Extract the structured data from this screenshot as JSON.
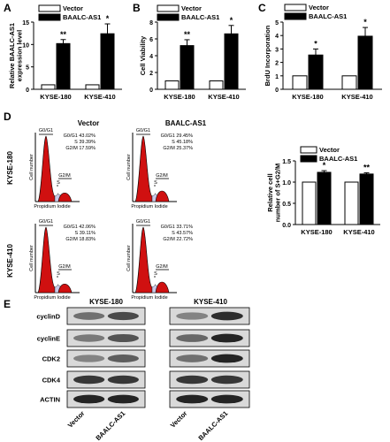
{
  "panels": {
    "A": "A",
    "B": "B",
    "C": "C",
    "D": "D",
    "E": "E"
  },
  "legend": {
    "vector": "Vector",
    "baalc": "BAALC-AS1"
  },
  "colors": {
    "vector": "#ffffff",
    "baalc": "#000000",
    "peak": "#d01010",
    "s_fill": "#c8c8e8",
    "blot_bg": "#d9d9d9",
    "band": "#1a1a1a"
  },
  "chart_data": [
    {
      "id": "A",
      "type": "bar",
      "categories": [
        "KYSE-180",
        "KYSE-410"
      ],
      "series": [
        {
          "name": "Vector",
          "values": [
            1,
            1
          ]
        },
        {
          "name": "BAALC-AS1",
          "values": [
            10.2,
            12.4
          ],
          "errors": [
            0.9,
            2.2
          ]
        }
      ],
      "ylabel": "Relative BAALC-AS1 expression level",
      "ylim": [
        0,
        15
      ],
      "yticks": [
        "0",
        "5",
        "10",
        "15"
      ],
      "sig": [
        "**",
        "*"
      ]
    },
    {
      "id": "B",
      "type": "bar",
      "categories": [
        "KYSE-180",
        "KYSE-410"
      ],
      "series": [
        {
          "name": "Vector",
          "values": [
            1,
            1
          ]
        },
        {
          "name": "BAALC-AS1",
          "values": [
            5.2,
            6.6
          ],
          "errors": [
            0.7,
            1.0
          ]
        }
      ],
      "ylabel": "Cell Viability",
      "ylim": [
        0,
        8
      ],
      "yticks": [
        "0",
        "2",
        "4",
        "6",
        "8"
      ],
      "sig": [
        "**",
        "*"
      ]
    },
    {
      "id": "C",
      "type": "bar",
      "categories": [
        "KYSE-180",
        "KYSE-410"
      ],
      "series": [
        {
          "name": "Vector",
          "values": [
            1,
            1
          ]
        },
        {
          "name": "BAALC-AS1",
          "values": [
            2.55,
            3.95
          ],
          "errors": [
            0.45,
            0.65
          ]
        }
      ],
      "ylabel": "BrdU Incorporation",
      "ylim": [
        0,
        5
      ],
      "yticks": [
        "0",
        "1",
        "2",
        "3",
        "4",
        "5"
      ],
      "sig": [
        "*",
        "*"
      ]
    },
    {
      "id": "D",
      "type": "bar",
      "categories": [
        "KYSE-180",
        "KYSE-410"
      ],
      "series": [
        {
          "name": "Vector",
          "values": [
            1,
            1
          ]
        },
        {
          "name": "BAALC-AS1",
          "values": [
            1.23,
            1.19
          ],
          "errors": [
            0.04,
            0.03
          ]
        }
      ],
      "ylabel": "Relative cell number of S+G2/M",
      "ylim": [
        0,
        1.5
      ],
      "yticks": [
        "0.0",
        "0.5",
        "1.0",
        "1.5"
      ],
      "sig": [
        "*",
        "**"
      ]
    }
  ],
  "flow": {
    "col_titles": [
      "Vector",
      "BAALC-AS1"
    ],
    "row_titles": [
      "KYSE-180",
      "KYSE-410"
    ],
    "y_axis": "Cell number",
    "x_axis": "Propidium Iodide",
    "gates": {
      "g0": "G0/G1",
      "s": "S",
      "g2": "G2/M"
    },
    "stats": [
      [
        "G0/G1 43.02%",
        "S 39.39%",
        "G2/M 17.59%"
      ],
      [
        "G0/G1 29.45%",
        "S 45.18%",
        "G2/M 25.37%"
      ],
      [
        "G0/G1 42.06%",
        "S 39.11%",
        "G2/M 18.83%"
      ],
      [
        "G0/G1 33.71%",
        "S 43.57%",
        "G2/M 22.72%"
      ]
    ]
  },
  "blot": {
    "cell_lines": [
      "KYSE-180",
      "KYSE-410"
    ],
    "proteins": [
      "cyclinD",
      "cyclinE",
      "CDK2",
      "CDK4",
      "ACTIN"
    ],
    "lanes": [
      "Vector",
      "BAALC-AS1",
      "Vector",
      "BAALC-AS1"
    ]
  }
}
